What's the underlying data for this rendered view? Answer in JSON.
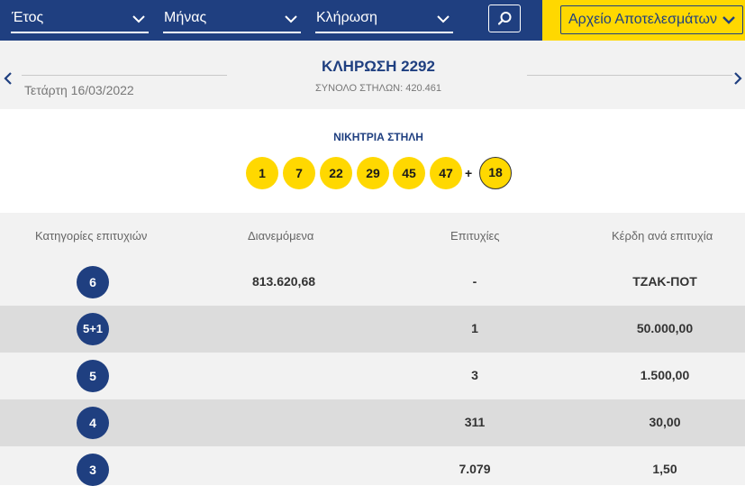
{
  "filters": {
    "year_label": "Έτος",
    "month_label": "Μήνας",
    "draw_label": "Κλήρωση"
  },
  "archive_button_label": "Αρχείο Αποτελεσμάτων",
  "draw": {
    "title": "ΚΛΗΡΩΣΗ 2292",
    "date": "Τετάρτη 16/03/2022",
    "total_columns": "ΣΥΝΟΛΟ ΣΤΗΛΩΝ: 420.461"
  },
  "winning": {
    "title": "ΝΙΚΗΤΡΙΑ ΣΤΗΛΗ",
    "numbers": [
      "1",
      "7",
      "22",
      "29",
      "45",
      "47"
    ],
    "plus": "+",
    "joker": "18"
  },
  "table": {
    "headers": {
      "category": "Κατηγορίες επιτυχιών",
      "distributed": "Διανεμόμενα",
      "winners": "Επιτυχίες",
      "prize": "Κέρδη ανά επιτυχία"
    },
    "rows": [
      {
        "category": "6",
        "distributed": "813.620,68",
        "winners": "-",
        "prize": "ΤΖΑΚ-ΠΟΤ"
      },
      {
        "category": "5+1",
        "distributed": "",
        "winners": "1",
        "prize": "50.000,00"
      },
      {
        "category": "5",
        "distributed": "",
        "winners": "3",
        "prize": "1.500,00"
      },
      {
        "category": "4",
        "distributed": "",
        "winners": "311",
        "prize": "30,00"
      },
      {
        "category": "3",
        "distributed": "",
        "winners": "7.079",
        "prize": "1,50"
      }
    ]
  },
  "icons": {
    "dropdown": "chevron-down-icon",
    "search": "search-icon",
    "prev": "chevron-left-icon",
    "next": "chevron-right-icon"
  },
  "colors": {
    "brand_blue": "#1f3f80",
    "brand_yellow": "#ffd800",
    "row_light": "#f2f2f2",
    "row_dark": "#dcdcdc"
  }
}
